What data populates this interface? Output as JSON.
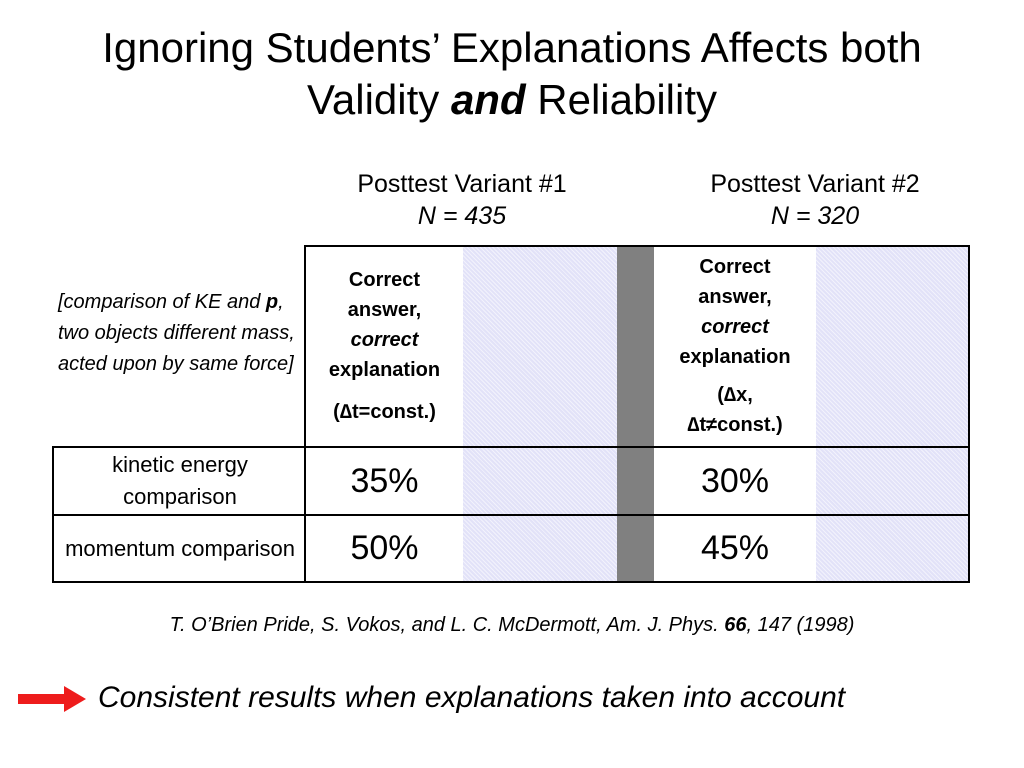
{
  "slide": {
    "title_line1": "Ignoring Students’ Explanations Affects both",
    "title_line2_pre": "Validity ",
    "title_line2_em": "and",
    "title_line2_post": " Reliability"
  },
  "columns": [
    {
      "heading": "Posttest Variant #1",
      "n": "N = 435"
    },
    {
      "heading": "Posttest Variant #2",
      "n": "N = 320"
    }
  ],
  "question": {
    "pre": "[comparison of KE and ",
    "bold": "p",
    "post": ", two objects different mass, acted upon by same force]"
  },
  "header_cells": [
    {
      "l1": "Correct",
      "l2": "answer,",
      "l3": "correct",
      "l4": "explanation",
      "cond": "(∆t=const.)"
    },
    {
      "l1": "Correct",
      "l2": "answer,",
      "l3": "correct",
      "l4": "explanation",
      "cond1": "(∆x,",
      "cond2": "∆t≠const.)"
    }
  ],
  "rows": [
    {
      "label": "kinetic energy comparison",
      "v1": "35%",
      "v2": "30%"
    },
    {
      "label": "momentum comparison",
      "v1": "50%",
      "v2": "45%"
    }
  ],
  "citation": {
    "pre": "T. O’Brien Pride, S. Vokos, and L. C.  McDermott, Am. J. Phys. ",
    "vol": "66",
    "post": ", 147 (1998)"
  },
  "conclusion": "Consistent results when explanations taken into account",
  "colors": {
    "shade": "#e2e2f8",
    "divider": "#808080",
    "arrow": "#ee1c1c"
  },
  "icons": {
    "arrow": "right-arrow-icon"
  }
}
